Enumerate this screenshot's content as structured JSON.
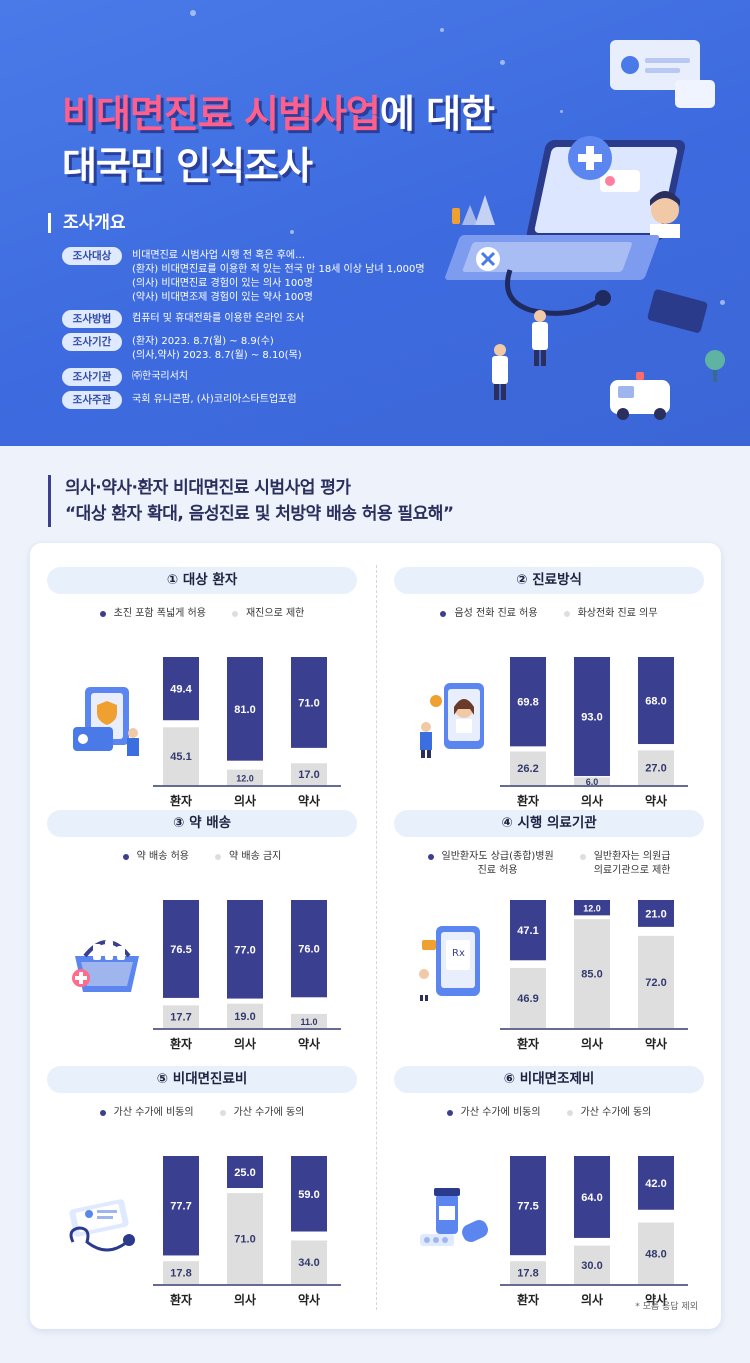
{
  "hero": {
    "title_highlight": "비대면진료 시범사업",
    "title_rest": "에 대한",
    "title_line2": "대국민 인식조사"
  },
  "overview": {
    "heading": "조사개요",
    "rows": [
      {
        "label": "조사대상",
        "lines": [
          "비대면진료 시범사업 시행 전 혹은 후에…",
          "(환자) 비대면진료를 이용한 적 있는 전국 만 18세 이상 남녀 1,000명",
          "(의사) 비대면진료 경험이 있는 의사 100명",
          "(약사) 비대면조제 경험이 있는 약사 100명"
        ]
      },
      {
        "label": "조사방법",
        "lines": [
          "컴퓨터 및 휴대전화를 이용한 온라인 조사"
        ]
      },
      {
        "label": "조사기간",
        "lines": [
          "(환자) 2023. 8.7(월) ~ 8.9(수)",
          "(의사,약사) 2023. 8.7(월) ~ 8.10(목)"
        ]
      },
      {
        "label": "조사기관",
        "lines": [
          "㈜한국리서치"
        ]
      },
      {
        "label": "조사주관",
        "lines": [
          "국회 유니콘팜, (사)코리아스타트업포럼"
        ]
      }
    ]
  },
  "section": {
    "line1": "의사·약사·환자 비대면진료 시범사업 평가",
    "line2": "“대상 환자 확대, 음성진료 및 처방약 배송 허용 필요해”"
  },
  "colors": {
    "dark": "#3b3f8f",
    "light": "#dedede",
    "hero_bg": "#4474e4",
    "accent_pink": "#ff5f8a"
  },
  "footnote": "* 모름 응답 제외",
  "chart_data": [
    {
      "type": "bar",
      "stacked": true,
      "title": "① 대상 환자",
      "categories": [
        "환자",
        "의사",
        "약사"
      ],
      "ylim": [
        0,
        100
      ],
      "series": [
        {
          "name": "초진 포함 폭넓게 허용",
          "values": [
            49.4,
            81.0,
            71.0
          ]
        },
        {
          "name": "재진으로 제한",
          "values": [
            45.1,
            12.0,
            17.0
          ]
        }
      ]
    },
    {
      "type": "bar",
      "stacked": true,
      "title": "② 진료방식",
      "categories": [
        "환자",
        "의사",
        "약사"
      ],
      "ylim": [
        0,
        100
      ],
      "series": [
        {
          "name": "음성 전화 진료 허용",
          "values": [
            69.8,
            93.0,
            68.0
          ]
        },
        {
          "name": "화상전화 진료 의무",
          "values": [
            26.2,
            6.0,
            27.0
          ]
        }
      ]
    },
    {
      "type": "bar",
      "stacked": true,
      "title": "③ 약 배송",
      "categories": [
        "환자",
        "의사",
        "약사"
      ],
      "ylim": [
        0,
        100
      ],
      "series": [
        {
          "name": "약 배송 허용",
          "values": [
            76.5,
            77.0,
            76.0
          ]
        },
        {
          "name": "약 배송 금지",
          "values": [
            17.7,
            19.0,
            11.0
          ]
        }
      ]
    },
    {
      "type": "bar",
      "stacked": true,
      "title": "④ 시행 의료기관",
      "categories": [
        "환자",
        "의사",
        "약사"
      ],
      "ylim": [
        0,
        100
      ],
      "series": [
        {
          "name": "일반환자도 상급(종합)병원\n진료 허용",
          "values": [
            47.1,
            12.0,
            21.0
          ]
        },
        {
          "name": "일반환자는 의원급\n의료기관으로 제한",
          "values": [
            46.9,
            85.0,
            72.0
          ]
        }
      ]
    },
    {
      "type": "bar",
      "stacked": true,
      "title": "⑤ 비대면진료비",
      "categories": [
        "환자",
        "의사",
        "약사"
      ],
      "ylim": [
        0,
        100
      ],
      "series": [
        {
          "name": "가산 수가에 비동의",
          "values": [
            77.7,
            25.0,
            59.0
          ]
        },
        {
          "name": "가산 수가에 동의",
          "values": [
            17.8,
            71.0,
            34.0
          ]
        }
      ]
    },
    {
      "type": "bar",
      "stacked": true,
      "title": "⑥ 비대면조제비",
      "categories": [
        "환자",
        "의사",
        "약사"
      ],
      "ylim": [
        0,
        100
      ],
      "series": [
        {
          "name": "가산 수가에 비동의",
          "values": [
            77.5,
            64.0,
            42.0
          ]
        },
        {
          "name": "가산 수가에 동의",
          "values": [
            17.8,
            30.0,
            48.0
          ]
        }
      ]
    }
  ]
}
